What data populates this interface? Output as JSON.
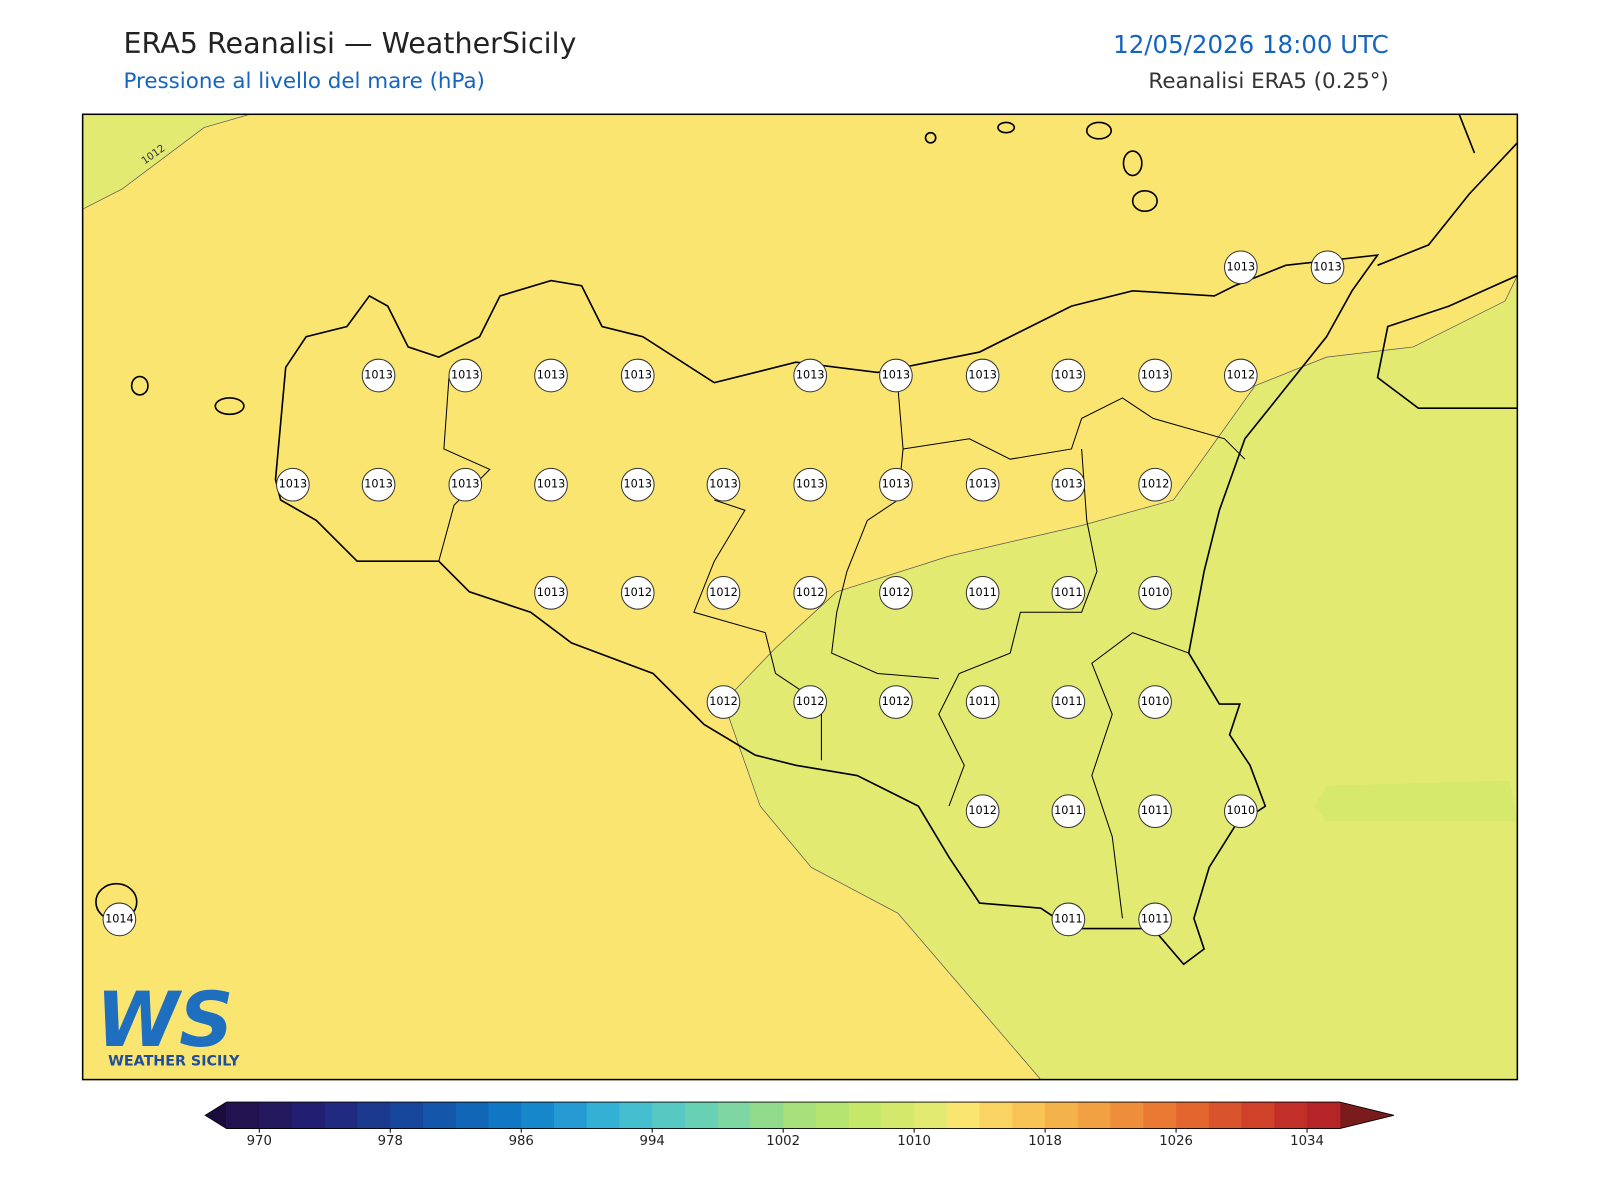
{
  "header": {
    "title": "ERA5 Reanalisi — WeatherSicily",
    "subtitle": "Pressione al livello del mare (hPa)",
    "datetime": "12/05/2026 18:00 UTC",
    "source": "Reanalisi ERA5 (0.25°)"
  },
  "map": {
    "contour_label": "1012",
    "stations": [
      {
        "value": 1013
      },
      {
        "value": 1013
      },
      {
        "value": 1013
      },
      {
        "value": 1013
      },
      {
        "value": 1013
      },
      {
        "value": 1013
      },
      {
        "value": 1013
      },
      {
        "value": 1013
      },
      {
        "value": 1013
      },
      {
        "value": 1013
      },
      {
        "value": 1013
      },
      {
        "value": 1012
      },
      {
        "value": 1013
      },
      {
        "value": 1013
      },
      {
        "value": 1013
      },
      {
        "value": 1013
      },
      {
        "value": 1013
      },
      {
        "value": 1013
      },
      {
        "value": 1013
      },
      {
        "value": 1013
      },
      {
        "value": 1013
      },
      {
        "value": 1013
      },
      {
        "value": 1012
      },
      {
        "value": 1013
      },
      {
        "value": 1012
      },
      {
        "value": 1012
      },
      {
        "value": 1012
      },
      {
        "value": 1012
      },
      {
        "value": 1011
      },
      {
        "value": 1011
      },
      {
        "value": 1010
      },
      {
        "value": 1012
      },
      {
        "value": 1012
      },
      {
        "value": 1012
      },
      {
        "value": 1011
      },
      {
        "value": 1011
      },
      {
        "value": 1010
      },
      {
        "value": 1012
      },
      {
        "value": 1011
      },
      {
        "value": 1011
      },
      {
        "value": 1010
      },
      {
        "value": 1014
      },
      {
        "value": 1011
      },
      {
        "value": 1011
      }
    ]
  },
  "colorbar": {
    "xlim": [
      968,
      1036
    ],
    "xticks": [
      970,
      978,
      986,
      994,
      1002,
      1010,
      1018,
      1026,
      1034
    ],
    "colors": [
      "#22124f",
      "#24185f",
      "#221f72",
      "#1f2a80",
      "#1b3a8e",
      "#17479c",
      "#1457aa",
      "#1165b6",
      "#0f77c4",
      "#1787cc",
      "#259ad2",
      "#33b0d4",
      "#45bfcf",
      "#57c9c2",
      "#68d1b4",
      "#7ed7a2",
      "#92db8c",
      "#a7e07a",
      "#b5e36f",
      "#c6e86a",
      "#d4e96c",
      "#e2ea72",
      "#fbe571",
      "#f9d462",
      "#f7c455",
      "#f4b24a",
      "#f1a042",
      "#ee8e3a",
      "#ea7a33",
      "#e3662f",
      "#d9532c",
      "#cf4129",
      "#c22f28",
      "#b52427"
    ],
    "under_color": "#1a0c3c",
    "over_color": "#7a1c1c"
  },
  "logo": {
    "mark": "WS",
    "name": "WEATHER SICILY"
  }
}
